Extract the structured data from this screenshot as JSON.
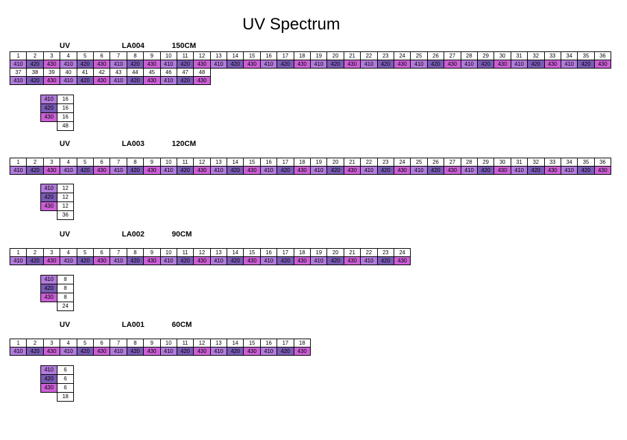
{
  "title": "UV Spectrum",
  "value_colors": {
    "410": "#B27BDC",
    "420": "#7A5BB5",
    "430": "#CB5FD6"
  },
  "sections": [
    {
      "uv_label": "UV",
      "model": "LA004",
      "length": "150CM",
      "strips": [
        {
          "numbers": [
            "1",
            "2",
            "3",
            "4",
            "5",
            "6",
            "7",
            "8",
            "9",
            "10",
            "11",
            "12",
            "13",
            "14",
            "15",
            "16",
            "17",
            "18",
            "19",
            "20",
            "21",
            "22",
            "23",
            "24",
            "25",
            "26",
            "27",
            "28",
            "29",
            "30",
            "31",
            "32",
            "33",
            "34",
            "35",
            "36"
          ],
          "values": [
            "410",
            "420",
            "430",
            "410",
            "420",
            "430",
            "410",
            "420",
            "430",
            "410",
            "420",
            "430",
            "410",
            "420",
            "430",
            "410",
            "420",
            "430",
            "410",
            "420",
            "430",
            "410",
            "420",
            "430",
            "410",
            "420",
            "430",
            "410",
            "420",
            "430",
            "410",
            "420",
            "430",
            "410",
            "420",
            "430"
          ]
        },
        {
          "numbers": [
            "37",
            "38",
            "39",
            "40",
            "41",
            "42",
            "43",
            "44",
            "45",
            "46",
            "47",
            "48"
          ],
          "values": [
            "410",
            "420",
            "430",
            "410",
            "420",
            "430",
            "410",
            "420",
            "430",
            "410",
            "420",
            "430"
          ]
        }
      ],
      "summary": {
        "rows": [
          {
            "label": "410",
            "count": "16"
          },
          {
            "label": "420",
            "count": "16"
          },
          {
            "label": "430",
            "count": "16"
          }
        ],
        "total": "48"
      }
    },
    {
      "uv_label": "UV",
      "model": "LA003",
      "length": "120CM",
      "strips": [
        {
          "numbers": [
            "1",
            "2",
            "3",
            "4",
            "5",
            "6",
            "7",
            "8",
            "9",
            "10",
            "11",
            "12",
            "13",
            "14",
            "15",
            "16",
            "17",
            "18",
            "19",
            "20",
            "21",
            "22",
            "23",
            "24",
            "25",
            "26",
            "27",
            "28",
            "29",
            "30",
            "31",
            "32",
            "33",
            "34",
            "35",
            "36"
          ],
          "values": [
            "410",
            "420",
            "430",
            "410",
            "420",
            "430",
            "410",
            "420",
            "430",
            "410",
            "420",
            "430",
            "410",
            "420",
            "430",
            "410",
            "420",
            "430",
            "410",
            "420",
            "430",
            "410",
            "420",
            "430",
            "410",
            "420",
            "430",
            "410",
            "420",
            "430",
            "410",
            "420",
            "430",
            "410",
            "420",
            "430"
          ]
        }
      ],
      "summary": {
        "rows": [
          {
            "label": "410",
            "count": "12"
          },
          {
            "label": "420",
            "count": "12"
          },
          {
            "label": "430",
            "count": "12"
          }
        ],
        "total": "36"
      }
    },
    {
      "uv_label": "UV",
      "model": "LA002",
      "length": "90CM",
      "strips": [
        {
          "numbers": [
            "1",
            "2",
            "3",
            "4",
            "5",
            "6",
            "7",
            "8",
            "9",
            "10",
            "11",
            "12",
            "13",
            "14",
            "15",
            "16",
            "17",
            "18",
            "19",
            "20",
            "21",
            "22",
            "23",
            "24"
          ],
          "values": [
            "410",
            "420",
            "430",
            "410",
            "420",
            "430",
            "410",
            "420",
            "430",
            "410",
            "420",
            "430",
            "410",
            "420",
            "430",
            "410",
            "420",
            "430",
            "410",
            "420",
            "430",
            "410",
            "420",
            "430"
          ]
        }
      ],
      "summary": {
        "rows": [
          {
            "label": "410",
            "count": "8"
          },
          {
            "label": "420",
            "count": "8"
          },
          {
            "label": "430",
            "count": "8"
          }
        ],
        "total": "24"
      }
    },
    {
      "uv_label": "UV",
      "model": "LA001",
      "length": "60CM",
      "strips": [
        {
          "numbers": [
            "1",
            "2",
            "3",
            "4",
            "5",
            "6",
            "7",
            "8",
            "9",
            "10",
            "11",
            "12",
            "13",
            "14",
            "15",
            "16",
            "17",
            "18"
          ],
          "values": [
            "410",
            "420",
            "430",
            "410",
            "420",
            "430",
            "410",
            "420",
            "430",
            "410",
            "420",
            "430",
            "410",
            "420",
            "430",
            "410",
            "420",
            "430"
          ]
        }
      ],
      "summary": {
        "rows": [
          {
            "label": "410",
            "count": "6"
          },
          {
            "label": "420",
            "count": "6"
          },
          {
            "label": "430",
            "count": "6"
          }
        ],
        "total": "18"
      }
    }
  ]
}
